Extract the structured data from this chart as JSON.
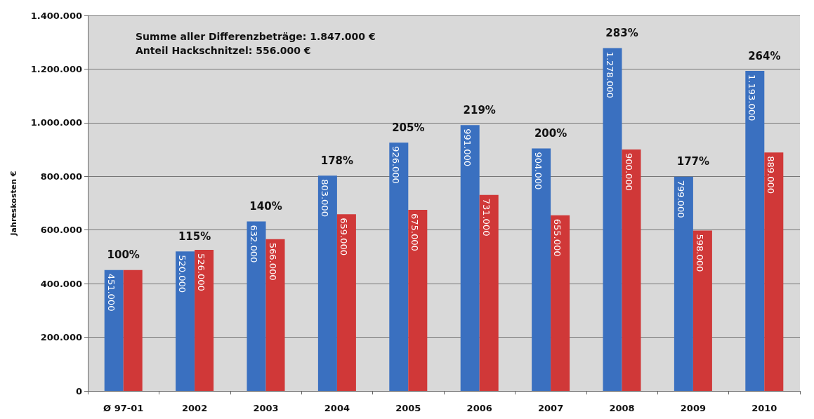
{
  "chart_data": {
    "type": "bar",
    "ylabel": "Jahreskosten €",
    "categories": [
      "Ø 97-01",
      "2002",
      "2003",
      "2004",
      "2005",
      "2006",
      "2007",
      "2008",
      "2009",
      "2010"
    ],
    "series": [
      {
        "color": "#3a70c0",
        "values": [
          451000,
          520000,
          632000,
          803000,
          926000,
          991000,
          904000,
          1278000,
          799000,
          1193000
        ],
        "value_labels": [
          "451.000",
          "520.000",
          "632.000",
          "803.000",
          "926.000",
          "991.000",
          "904.000",
          "1.278.000",
          "799.000",
          "1.193.000"
        ]
      },
      {
        "color": "#d03838",
        "values": [
          451000,
          526000,
          566000,
          659000,
          675000,
          731000,
          655000,
          900000,
          598000,
          889000
        ],
        "value_labels": [
          null,
          "526.000",
          "566.000",
          "659.000",
          "675.000",
          "731.000",
          "655.000",
          "900.000",
          "598.000",
          "889.000"
        ]
      }
    ],
    "ylim": [
      0,
      1400000
    ],
    "yticks": [
      {
        "value": 0,
        "label": "0"
      },
      {
        "value": 200000,
        "label": "200.000"
      },
      {
        "value": 400000,
        "label": "400.000"
      },
      {
        "value": 600000,
        "label": "600.000"
      },
      {
        "value": 800000,
        "label": "800.000"
      },
      {
        "value": 1000000,
        "label": "1.000.000"
      },
      {
        "value": 1200000,
        "label": "1.200.000"
      },
      {
        "value": 1400000,
        "label": "1.400.000"
      }
    ],
    "grid": "y",
    "annotations": [
      "Summe aller Differenzbeträge: 1.847.000 €",
      "Anteil Hackschnitzel: 556.000 €",
      {
        "text": "100%",
        "x": "Ø 97-01",
        "y": 451000
      },
      {
        "text": "115%",
        "x": "2002",
        "y": 520000
      },
      {
        "text": "140%",
        "x": "2003",
        "y": 632000
      },
      {
        "text": "178%",
        "x": "2004",
        "y": 803000
      },
      {
        "text": "205%",
        "x": "2005",
        "y": 926000
      },
      {
        "text": "219%",
        "x": "2006",
        "y": 991000
      },
      {
        "text": "200%",
        "x": "2007",
        "y": 904000
      },
      {
        "text": "283%",
        "x": "2008",
        "y": 1278000
      },
      {
        "text": "177%",
        "x": "2009",
        "y": 799000
      },
      {
        "text": "264%",
        "x": "2010",
        "y": 1193000
      }
    ]
  }
}
